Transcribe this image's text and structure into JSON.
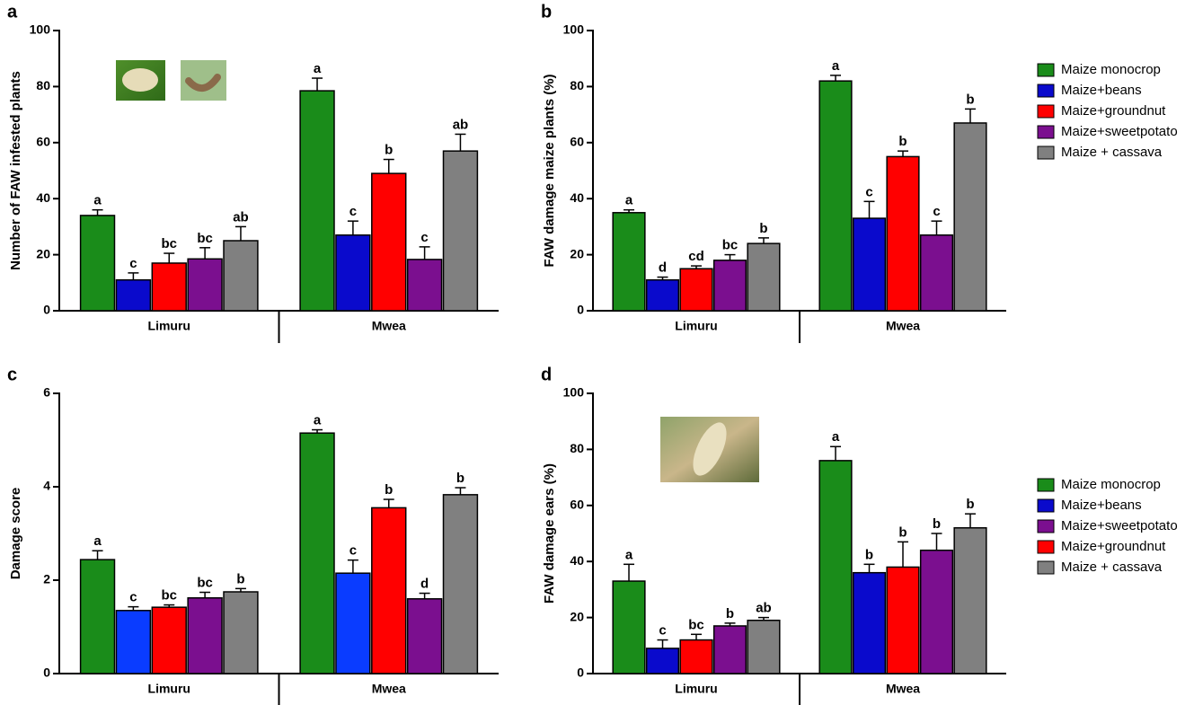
{
  "chart_data": [
    {
      "type": "bar",
      "panel": "a",
      "ylabel": "Number of FAW infested plants",
      "categories": [
        "Limuru",
        "Mwea"
      ],
      "ylim": [
        0,
        100
      ],
      "yticks": [
        0,
        20,
        40,
        60,
        80,
        100
      ],
      "legend": false,
      "series": [
        {
          "color": "#1a8c1a",
          "values": [
            34,
            78.5
          ],
          "errors": [
            2,
            4.5
          ],
          "letters": [
            "a",
            "a"
          ]
        },
        {
          "color": "#0a0acc",
          "values": [
            11,
            27
          ],
          "errors": [
            2.5,
            5
          ],
          "letters": [
            "c",
            "c"
          ]
        },
        {
          "color": "#ff0000",
          "values": [
            17,
            49
          ],
          "errors": [
            3.5,
            5
          ],
          "letters": [
            "bc",
            "b"
          ]
        },
        {
          "color": "#7b0f8f",
          "values": [
            18.5,
            18.3
          ],
          "errors": [
            4,
            4.5
          ],
          "letters": [
            "bc",
            "c"
          ]
        },
        {
          "color": "#808080",
          "values": [
            25,
            57
          ],
          "errors": [
            5,
            6
          ],
          "letters": [
            "ab",
            "ab"
          ]
        }
      ]
    },
    {
      "type": "bar",
      "panel": "b",
      "ylabel": "FAW damage maize plants (%)",
      "categories": [
        "Limuru",
        "Mwea"
      ],
      "ylim": [
        0,
        100
      ],
      "yticks": [
        0,
        20,
        40,
        60,
        80,
        100
      ],
      "legend": true,
      "legend_position": "right",
      "series": [
        {
          "name": "Maize monocrop",
          "color": "#1a8c1a",
          "values": [
            35,
            82
          ],
          "errors": [
            1,
            2
          ],
          "letters": [
            "a",
            "a"
          ]
        },
        {
          "name": "Maize+beans",
          "color": "#0a0acc",
          "values": [
            11,
            33
          ],
          "errors": [
            1,
            6
          ],
          "letters": [
            "d",
            "c"
          ]
        },
        {
          "name": "Maize+groundnut",
          "color": "#ff0000",
          "values": [
            15,
            55
          ],
          "errors": [
            1,
            2
          ],
          "letters": [
            "cd",
            "b"
          ]
        },
        {
          "name": "Maize+sweetpotato",
          "color": "#7b0f8f",
          "values": [
            18,
            27
          ],
          "errors": [
            2,
            5
          ],
          "letters": [
            "bc",
            "c"
          ]
        },
        {
          "name": "Maize + cassava",
          "color": "#808080",
          "values": [
            24,
            67
          ],
          "errors": [
            2,
            5
          ],
          "letters": [
            "b",
            "b"
          ]
        }
      ]
    },
    {
      "type": "bar",
      "panel": "c",
      "ylabel": "Damage score",
      "categories": [
        "Limuru",
        "Mwea"
      ],
      "ylim": [
        0,
        6
      ],
      "yticks": [
        0,
        2,
        4,
        6
      ],
      "legend": false,
      "series": [
        {
          "color": "#1a8c1a",
          "values": [
            2.44,
            5.15
          ],
          "errors": [
            0.19,
            0.07
          ],
          "letters": [
            "a",
            "a"
          ]
        },
        {
          "color": "#0a3cff",
          "values": [
            1.35,
            2.15
          ],
          "errors": [
            0.08,
            0.28
          ],
          "letters": [
            "c",
            "c"
          ]
        },
        {
          "color": "#ff0000",
          "values": [
            1.42,
            3.55
          ],
          "errors": [
            0.05,
            0.18
          ],
          "letters": [
            "bc",
            "b"
          ]
        },
        {
          "color": "#7b0f8f",
          "values": [
            1.62,
            1.6
          ],
          "errors": [
            0.12,
            0.12
          ],
          "letters": [
            "bc",
            "d"
          ]
        },
        {
          "color": "#808080",
          "values": [
            1.75,
            3.83
          ],
          "errors": [
            0.07,
            0.15
          ],
          "letters": [
            "b",
            "b"
          ]
        }
      ]
    },
    {
      "type": "bar",
      "panel": "d",
      "ylabel": "FAW damage ears (%)",
      "categories": [
        "Limuru",
        "Mwea"
      ],
      "ylim": [
        0,
        100
      ],
      "yticks": [
        0,
        20,
        40,
        60,
        80,
        100
      ],
      "legend": true,
      "legend_position": "right",
      "legend_order": [
        0,
        1,
        3,
        2,
        4
      ],
      "series": [
        {
          "name": "Maize monocrop",
          "color": "#1a8c1a",
          "values": [
            33,
            76
          ],
          "errors": [
            6,
            5
          ],
          "letters": [
            "a",
            "a"
          ]
        },
        {
          "name": "Maize+beans",
          "color": "#0a0acc",
          "values": [
            9,
            36
          ],
          "errors": [
            3,
            3
          ],
          "letters": [
            "c",
            "b"
          ]
        },
        {
          "name": "Maize+groundnut",
          "color": "#ff0000",
          "values": [
            12,
            38
          ],
          "errors": [
            2,
            9
          ],
          "letters": [
            "bc",
            "b"
          ]
        },
        {
          "name": "Maize+sweetpotato",
          "color": "#7b0f8f",
          "values": [
            17,
            44
          ],
          "errors": [
            1,
            6
          ],
          "letters": [
            "b",
            "b"
          ]
        },
        {
          "name": "Maize + cassava",
          "color": "#808080",
          "values": [
            19,
            52
          ],
          "errors": [
            1,
            5
          ],
          "letters": [
            "ab",
            "b"
          ]
        }
      ]
    }
  ]
}
